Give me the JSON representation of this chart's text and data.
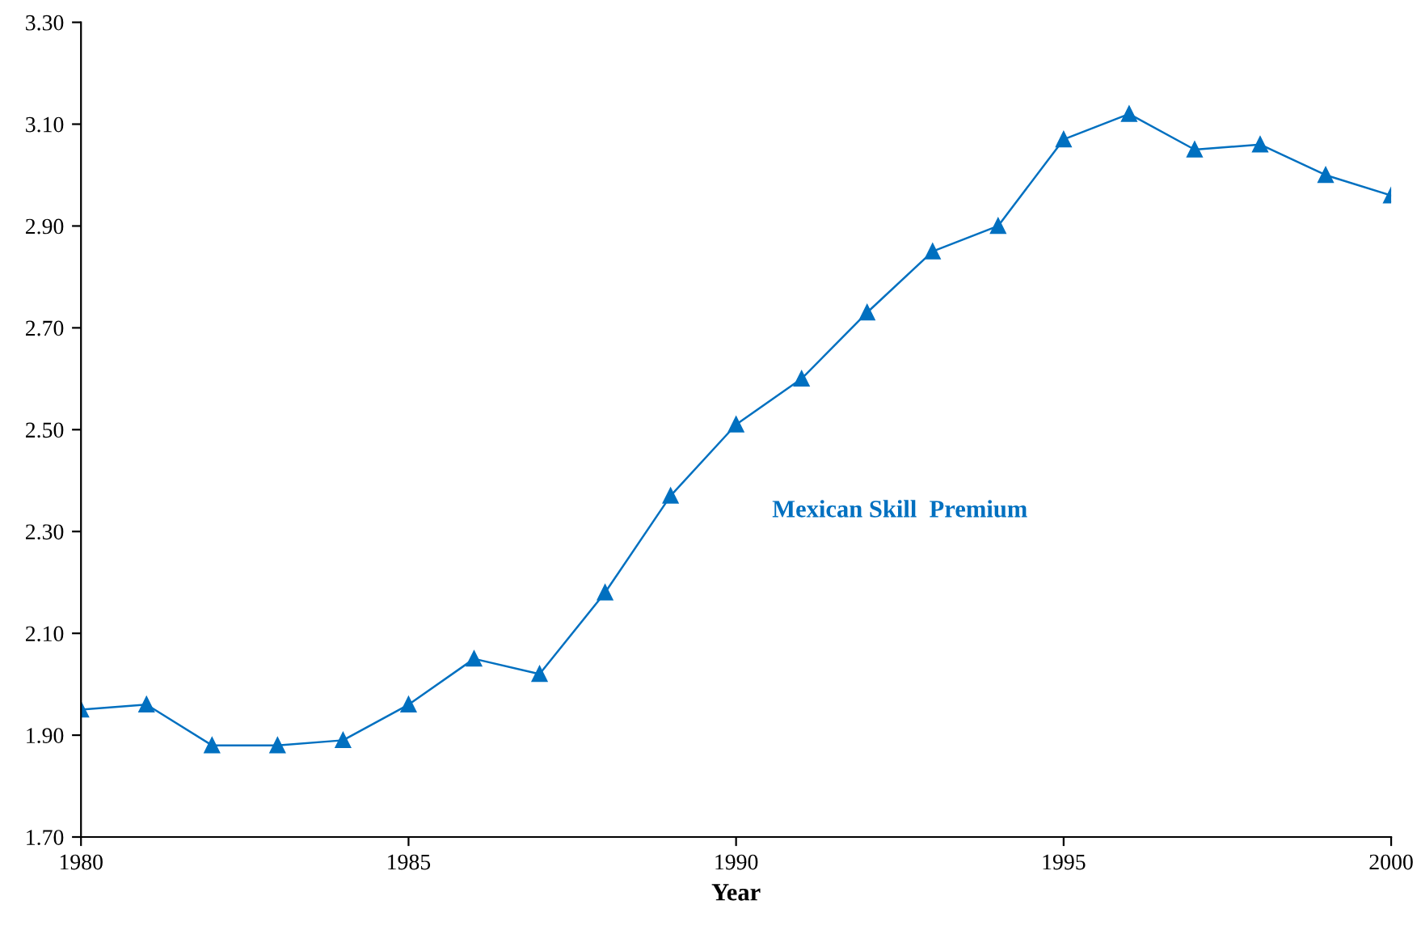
{
  "chart_data": {
    "type": "line",
    "xlabel": "Year",
    "x": [
      1980,
      1981,
      1982,
      1983,
      1984,
      1985,
      1986,
      1987,
      1988,
      1989,
      1990,
      1991,
      1992,
      1993,
      1994,
      1995,
      1996,
      1997,
      1998,
      1999,
      2000
    ],
    "series": [
      {
        "name": "Mexican Skill  Premium",
        "color": "#0070c0",
        "values": [
          1.95,
          1.96,
          1.88,
          1.88,
          1.89,
          1.96,
          2.05,
          2.02,
          2.18,
          2.37,
          2.51,
          2.6,
          2.73,
          2.85,
          2.9,
          3.07,
          3.12,
          3.05,
          3.06,
          3.0,
          2.96
        ]
      }
    ],
    "xlim": [
      1980,
      2000
    ],
    "xticks": [
      1980,
      1985,
      1990,
      1995,
      2000
    ],
    "ylim": [
      1.7,
      3.3
    ],
    "yticks": [
      {
        "value": 1.7,
        "label": "1.70"
      },
      {
        "value": 1.9,
        "label": "1.90"
      },
      {
        "value": 2.1,
        "label": "2.10"
      },
      {
        "value": 2.3,
        "label": "2.30"
      },
      {
        "value": 2.5,
        "label": "2.50"
      },
      {
        "value": 2.7,
        "label": "2.70"
      },
      {
        "value": 2.9,
        "label": "2.90"
      },
      {
        "value": 3.1,
        "label": "3.10"
      },
      {
        "value": 3.3,
        "label": "3.30"
      }
    ],
    "grid": false,
    "legend": false,
    "marker": "triangle",
    "line_style": "solid"
  }
}
